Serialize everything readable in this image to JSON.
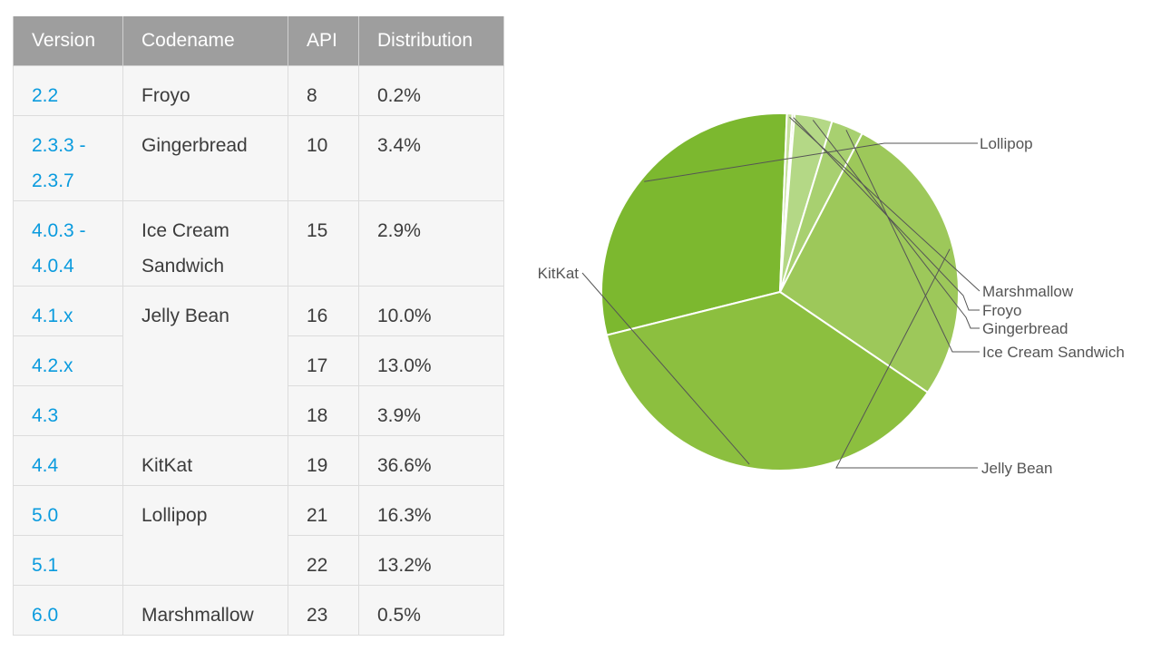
{
  "table": {
    "headers": [
      "Version",
      "Codename",
      "API",
      "Distribution"
    ],
    "rows": [
      {
        "version": "2.2",
        "codename": "Froyo",
        "api": "8",
        "distribution": "0.2%"
      },
      {
        "version": "2.3.3 - 2.3.7",
        "codename": "Gingerbread",
        "api": "10",
        "distribution": "3.4%"
      },
      {
        "version": "4.0.3 - 4.0.4",
        "codename": "Ice Cream Sandwich",
        "api": "15",
        "distribution": "2.9%"
      },
      {
        "version": "4.1.x",
        "codename": "Jelly Bean",
        "api": "16",
        "distribution": "10.0%"
      },
      {
        "version": "4.2.x",
        "codename": "",
        "api": "17",
        "distribution": "13.0%"
      },
      {
        "version": "4.3",
        "codename": "",
        "api": "18",
        "distribution": "3.9%"
      },
      {
        "version": "4.4",
        "codename": "KitKat",
        "api": "19",
        "distribution": "36.6%"
      },
      {
        "version": "5.0",
        "codename": "Lollipop",
        "api": "21",
        "distribution": "16.3%"
      },
      {
        "version": "5.1",
        "codename": "",
        "api": "22",
        "distribution": "13.2%"
      },
      {
        "version": "6.0",
        "codename": "Marshmallow",
        "api": "23",
        "distribution": "0.5%"
      }
    ]
  },
  "chart_data": {
    "type": "pie",
    "slices": [
      {
        "label": "Lollipop",
        "value": 29.5,
        "color": "#7cb82f"
      },
      {
        "label": "Marshmallow",
        "value": 0.5,
        "color": "#c5e09b"
      },
      {
        "label": "Froyo",
        "value": 0.2,
        "color": "#bddb8f"
      },
      {
        "label": "Gingerbread",
        "value": 3.4,
        "color": "#b4d886"
      },
      {
        "label": "Ice Cream Sandwich",
        "value": 2.9,
        "color": "#a8d070"
      },
      {
        "label": "Jelly Bean",
        "value": 26.9,
        "color": "#9dc85a"
      },
      {
        "label": "KitKat",
        "value": 36.6,
        "color": "#8cbf3f"
      }
    ],
    "legend": "leader-line labels beside slices"
  }
}
